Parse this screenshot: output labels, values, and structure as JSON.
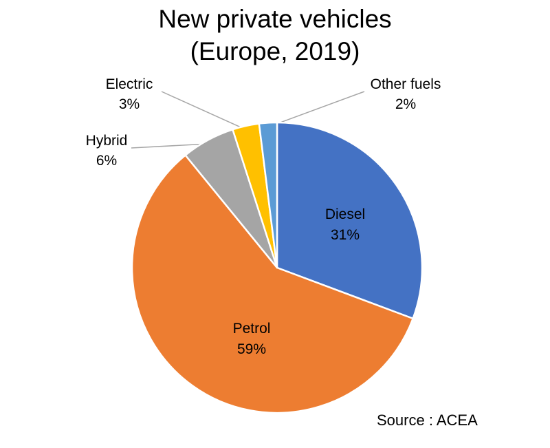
{
  "chart_data": {
    "type": "pie",
    "title_lines": [
      "New private vehicles",
      "(Europe, 2019)"
    ],
    "slices": [
      {
        "name": "Diesel",
        "value": 31,
        "label": "31%",
        "color": "#4472C4"
      },
      {
        "name": "Petrol",
        "value": 59,
        "label": "59%",
        "color": "#ED7D31"
      },
      {
        "name": "Hybrid",
        "value": 6,
        "label": "6%",
        "color": "#A5A5A5"
      },
      {
        "name": "Electric",
        "value": 3,
        "label": "3%",
        "color": "#FFC000"
      },
      {
        "name": "Other fuels",
        "value": 2,
        "label": "2%",
        "color": "#5B9BD5"
      }
    ],
    "source": "Source : ACEA",
    "legend": "none"
  }
}
